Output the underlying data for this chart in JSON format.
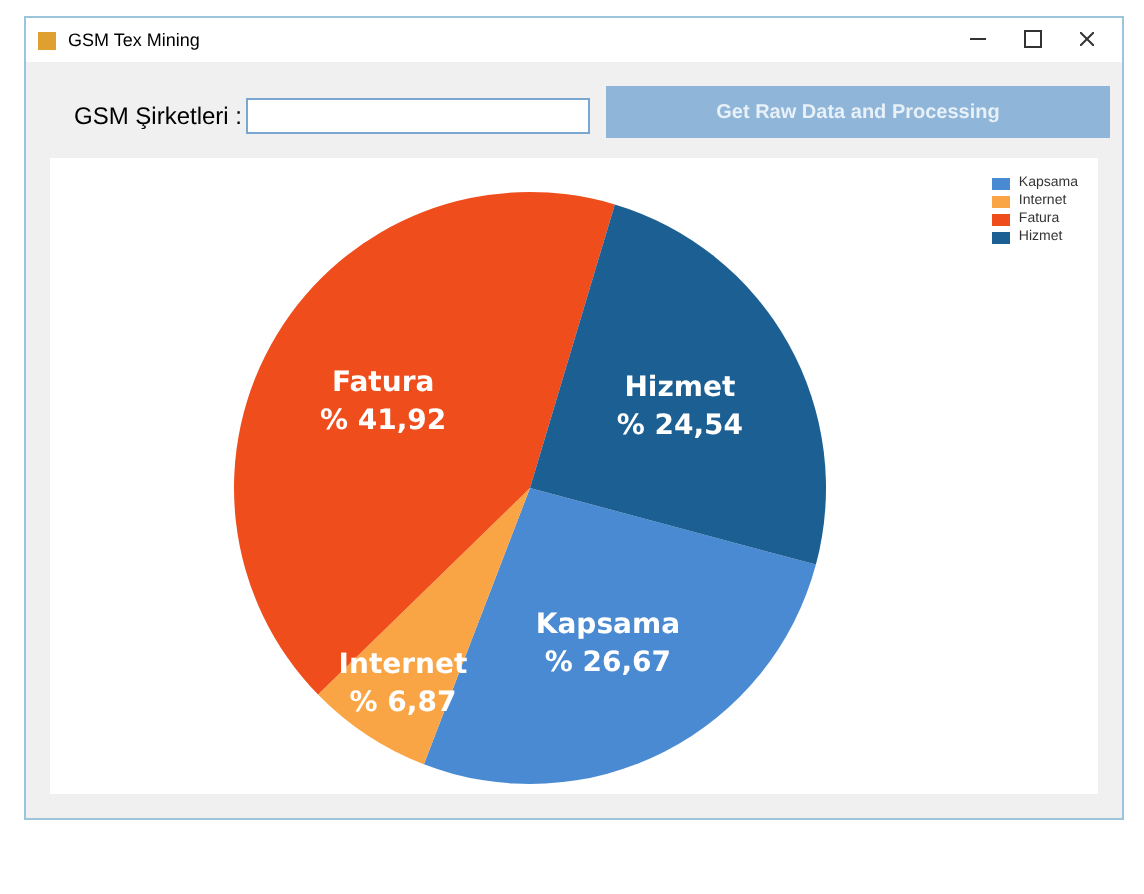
{
  "chart_data": {
    "type": "pie",
    "title": "GSM Tex Mining",
    "annotations": [
      "GSM Şirketleri :",
      "Get Raw Data and  Processing"
    ],
    "categories": [
      "Kapsama",
      "Internet",
      "Fatura",
      "Hizmet"
    ],
    "values": [
      26.67,
      6.87,
      41.92,
      24.54
    ],
    "value_labels": [
      "% 26,67",
      "% 6,87",
      "% 41,92",
      "% 24,54"
    ],
    "colors": [
      "#4a8ad2",
      "#f9a545",
      "#f04d1c",
      "#1c5f93"
    ],
    "legend": "top right"
  }
}
